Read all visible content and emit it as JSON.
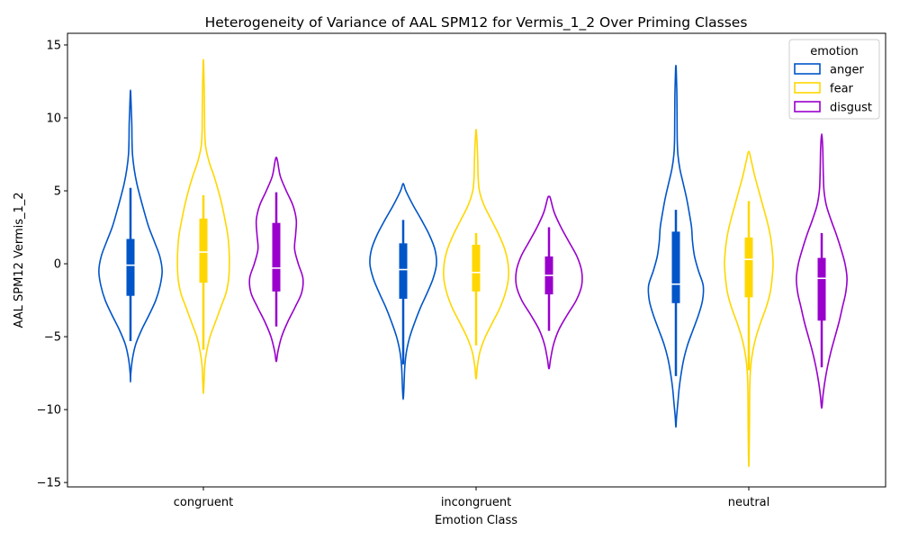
{
  "chart_data": {
    "type": "violin",
    "title": "Heterogeneity of Variance of AAL SPM12 for Vermis_1_2 Over Priming Classes",
    "xlabel": "Emotion Class",
    "ylabel": "AAL SPM12 Vermis_1_2",
    "categories": [
      "congruent",
      "incongruent",
      "neutral"
    ],
    "ylim": [
      -15.3,
      15.8
    ],
    "yticks": [
      -15,
      -10,
      -5,
      0,
      5,
      10,
      15
    ],
    "ytick_labels": [
      "−15",
      "−10",
      "−5",
      "0",
      "5",
      "10",
      "15"
    ],
    "grid": false,
    "legend": {
      "title": "emotion",
      "position": "top-right",
      "entries": [
        "anger",
        "fear",
        "disgust"
      ]
    },
    "colors": {
      "anger": "#0055c8",
      "fear": "#ffd700",
      "disgust": "#9900cc"
    },
    "series": [
      {
        "name": "anger",
        "color": "#0055c8",
        "violins": [
          {
            "category": "congruent",
            "box": {
              "whisker_low": -5.3,
              "q1": -2.2,
              "median": -0.1,
              "q3": 1.7,
              "whisker_high": 5.2
            },
            "profile": [
              [
                -8.1,
                0.0
              ],
              [
                -7.5,
                0.01
              ],
              [
                -6.5,
                0.06
              ],
              [
                -5.5,
                0.16
              ],
              [
                -4.5,
                0.34
              ],
              [
                -3.5,
                0.56
              ],
              [
                -2.5,
                0.76
              ],
              [
                -1.5,
                0.89
              ],
              [
                -0.5,
                0.95
              ],
              [
                0.5,
                0.88
              ],
              [
                1.5,
                0.72
              ],
              [
                2.5,
                0.55
              ],
              [
                3.5,
                0.42
              ],
              [
                4.5,
                0.3
              ],
              [
                5.5,
                0.19
              ],
              [
                6.5,
                0.11
              ],
              [
                7.5,
                0.06
              ],
              [
                8.5,
                0.045
              ],
              [
                9.5,
                0.04
              ],
              [
                10.5,
                0.025
              ],
              [
                11.5,
                0.01
              ],
              [
                11.9,
                0.0
              ]
            ]
          },
          {
            "category": "incongruent",
            "box": {
              "whisker_low": -6.9,
              "q1": -2.4,
              "median": -0.4,
              "q3": 1.4,
              "whisker_high": 3.0
            },
            "profile": [
              [
                -9.3,
                0.0
              ],
              [
                -8.6,
                0.02
              ],
              [
                -8.0,
                0.03
              ],
              [
                -7.0,
                0.05
              ],
              [
                -6.0,
                0.1
              ],
              [
                -5.0,
                0.2
              ],
              [
                -4.0,
                0.35
              ],
              [
                -3.0,
                0.52
              ],
              [
                -2.0,
                0.72
              ],
              [
                -1.0,
                0.9
              ],
              [
                0.0,
                1.0
              ],
              [
                1.0,
                0.95
              ],
              [
                2.0,
                0.78
              ],
              [
                3.0,
                0.55
              ],
              [
                4.0,
                0.3
              ],
              [
                5.0,
                0.08
              ],
              [
                5.5,
                0.0
              ]
            ]
          },
          {
            "category": "neutral",
            "box": {
              "whisker_low": -7.7,
              "q1": -2.7,
              "median": -1.4,
              "q3": 2.2,
              "whisker_high": 3.7
            },
            "profile": [
              [
                -11.2,
                0.0
              ],
              [
                -10.5,
                0.02
              ],
              [
                -9.5,
                0.06
              ],
              [
                -8.5,
                0.1
              ],
              [
                -7.5,
                0.16
              ],
              [
                -6.5,
                0.24
              ],
              [
                -5.5,
                0.36
              ],
              [
                -4.5,
                0.52
              ],
              [
                -3.5,
                0.68
              ],
              [
                -2.5,
                0.8
              ],
              [
                -1.5,
                0.82
              ],
              [
                -0.5,
                0.68
              ],
              [
                0.5,
                0.56
              ],
              [
                1.5,
                0.5
              ],
              [
                2.5,
                0.47
              ],
              [
                3.5,
                0.4
              ],
              [
                4.5,
                0.32
              ],
              [
                5.5,
                0.22
              ],
              [
                6.5,
                0.12
              ],
              [
                7.5,
                0.06
              ],
              [
                8.5,
                0.04
              ],
              [
                10.0,
                0.035
              ],
              [
                11.5,
                0.03
              ],
              [
                12.5,
                0.02
              ],
              [
                13.3,
                0.01
              ],
              [
                13.6,
                0.0
              ]
            ]
          }
        ]
      },
      {
        "name": "fear",
        "color": "#ffd700",
        "violins": [
          {
            "category": "congruent",
            "box": {
              "whisker_low": -5.9,
              "q1": -1.3,
              "median": 0.8,
              "q3": 3.1,
              "whisker_high": 4.7
            },
            "profile": [
              [
                -8.9,
                0.0
              ],
              [
                -8.0,
                0.02
              ],
              [
                -7.0,
                0.04
              ],
              [
                -6.0,
                0.1
              ],
              [
                -5.0,
                0.2
              ],
              [
                -4.0,
                0.36
              ],
              [
                -3.0,
                0.52
              ],
              [
                -2.0,
                0.68
              ],
              [
                -1.0,
                0.76
              ],
              [
                0.0,
                0.78
              ],
              [
                1.0,
                0.77
              ],
              [
                2.0,
                0.73
              ],
              [
                3.0,
                0.65
              ],
              [
                4.0,
                0.56
              ],
              [
                5.0,
                0.45
              ],
              [
                6.0,
                0.32
              ],
              [
                7.0,
                0.17
              ],
              [
                8.0,
                0.07
              ],
              [
                9.0,
                0.04
              ],
              [
                10.0,
                0.035
              ],
              [
                11.0,
                0.03
              ],
              [
                12.0,
                0.025
              ],
              [
                13.0,
                0.015
              ],
              [
                14.0,
                0.0
              ]
            ]
          },
          {
            "category": "incongruent",
            "box": {
              "whisker_low": -5.6,
              "q1": -1.9,
              "median": -0.6,
              "q3": 1.3,
              "whisker_high": 2.1
            },
            "profile": [
              [
                -7.9,
                0.0
              ],
              [
                -7.0,
                0.04
              ],
              [
                -6.0,
                0.12
              ],
              [
                -5.0,
                0.28
              ],
              [
                -4.0,
                0.5
              ],
              [
                -3.0,
                0.72
              ],
              [
                -2.0,
                0.88
              ],
              [
                -1.0,
                0.97
              ],
              [
                0.0,
                0.96
              ],
              [
                1.0,
                0.86
              ],
              [
                2.0,
                0.68
              ],
              [
                3.0,
                0.46
              ],
              [
                4.0,
                0.24
              ],
              [
                5.0,
                0.1
              ],
              [
                6.0,
                0.06
              ],
              [
                7.0,
                0.05
              ],
              [
                8.0,
                0.035
              ],
              [
                9.0,
                0.01
              ],
              [
                9.2,
                0.0
              ]
            ]
          },
          {
            "category": "neutral",
            "box": {
              "whisker_low": -7.3,
              "q1": -2.3,
              "median": 0.3,
              "q3": 1.8,
              "whisker_high": 4.3
            },
            "profile": [
              [
                -13.9,
                0.0
              ],
              [
                -13.0,
                0.01
              ],
              [
                -11.0,
                0.02
              ],
              [
                -9.0,
                0.025
              ],
              [
                -8.0,
                0.035
              ],
              [
                -7.0,
                0.06
              ],
              [
                -6.0,
                0.12
              ],
              [
                -5.0,
                0.22
              ],
              [
                -4.0,
                0.36
              ],
              [
                -3.0,
                0.52
              ],
              [
                -2.0,
                0.64
              ],
              [
                -1.0,
                0.7
              ],
              [
                0.0,
                0.73
              ],
              [
                1.0,
                0.7
              ],
              [
                2.0,
                0.64
              ],
              [
                3.0,
                0.54
              ],
              [
                4.0,
                0.42
              ],
              [
                5.0,
                0.3
              ],
              [
                6.0,
                0.18
              ],
              [
                7.0,
                0.08
              ],
              [
                7.7,
                0.0
              ]
            ]
          }
        ]
      },
      {
        "name": "disgust",
        "color": "#9900cc",
        "violins": [
          {
            "category": "congruent",
            "box": {
              "whisker_low": -4.3,
              "q1": -1.9,
              "median": -0.3,
              "q3": 2.8,
              "whisker_high": 4.9
            },
            "profile": [
              [
                -6.7,
                0.0
              ],
              [
                -6.0,
                0.05
              ],
              [
                -5.0,
                0.16
              ],
              [
                -4.0,
                0.34
              ],
              [
                -3.0,
                0.56
              ],
              [
                -2.0,
                0.76
              ],
              [
                -1.0,
                0.8
              ],
              [
                0.0,
                0.66
              ],
              [
                1.0,
                0.55
              ],
              [
                2.0,
                0.58
              ],
              [
                3.0,
                0.6
              ],
              [
                4.0,
                0.5
              ],
              [
                5.0,
                0.3
              ],
              [
                6.0,
                0.12
              ],
              [
                7.0,
                0.04
              ],
              [
                7.3,
                0.0
              ]
            ]
          },
          {
            "category": "incongruent",
            "box": {
              "whisker_low": -4.6,
              "q1": -2.1,
              "median": -0.8,
              "q3": 0.5,
              "whisker_high": 2.5
            },
            "profile": [
              [
                -7.2,
                0.0
              ],
              [
                -6.5,
                0.05
              ],
              [
                -5.5,
                0.14
              ],
              [
                -4.5,
                0.3
              ],
              [
                -3.5,
                0.55
              ],
              [
                -2.5,
                0.82
              ],
              [
                -1.5,
                0.98
              ],
              [
                -0.5,
                0.98
              ],
              [
                0.5,
                0.84
              ],
              [
                1.5,
                0.6
              ],
              [
                2.5,
                0.36
              ],
              [
                3.5,
                0.16
              ],
              [
                4.5,
                0.04
              ],
              [
                4.6,
                0.0
              ]
            ]
          },
          {
            "category": "neutral",
            "box": {
              "whisker_low": -7.1,
              "q1": -3.9,
              "median": -1.0,
              "q3": 0.4,
              "whisker_high": 2.1
            },
            "profile": [
              [
                -9.9,
                0.0
              ],
              [
                -9.0,
                0.04
              ],
              [
                -8.0,
                0.1
              ],
              [
                -7.0,
                0.18
              ],
              [
                -6.0,
                0.28
              ],
              [
                -5.0,
                0.4
              ],
              [
                -4.0,
                0.52
              ],
              [
                -3.0,
                0.62
              ],
              [
                -2.0,
                0.72
              ],
              [
                -1.0,
                0.76
              ],
              [
                0.0,
                0.7
              ],
              [
                1.0,
                0.58
              ],
              [
                2.0,
                0.44
              ],
              [
                3.0,
                0.28
              ],
              [
                4.0,
                0.14
              ],
              [
                5.0,
                0.07
              ],
              [
                6.0,
                0.05
              ],
              [
                7.0,
                0.04
              ],
              [
                8.0,
                0.03
              ],
              [
                8.9,
                0.0
              ]
            ]
          }
        ]
      }
    ]
  }
}
